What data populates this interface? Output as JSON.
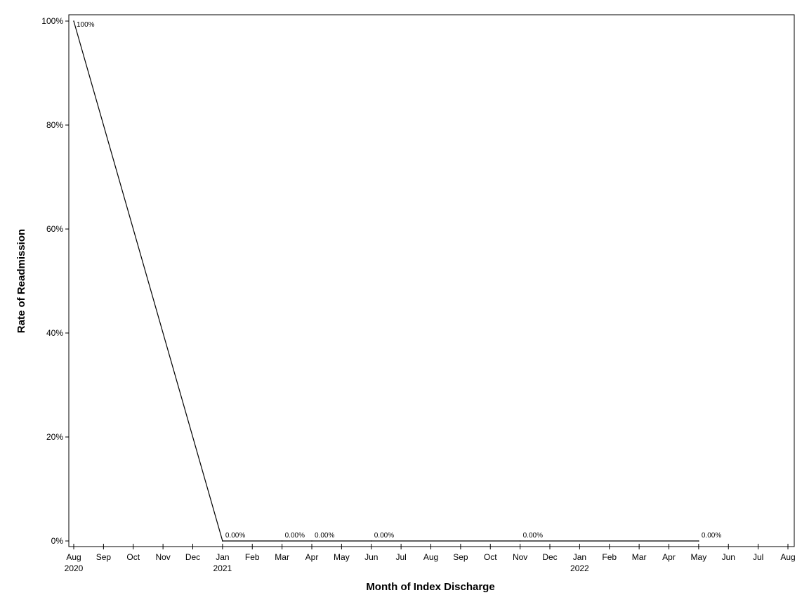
{
  "chart_data": {
    "type": "line",
    "xlabel": "Month of Index Discharge",
    "ylabel": "Rate of Readmission",
    "grid": false,
    "legend": "none",
    "x_range": [
      "2020-08",
      "2022-08"
    ],
    "ylim": [
      0,
      100
    ],
    "y_unit": "%",
    "y_ticks": [
      {
        "value": 0,
        "label": "0%"
      },
      {
        "value": 20,
        "label": "20%"
      },
      {
        "value": 40,
        "label": "40%"
      },
      {
        "value": 60,
        "label": "60%"
      },
      {
        "value": 80,
        "label": "80%"
      },
      {
        "value": 100,
        "label": "100%"
      }
    ],
    "x_ticks": [
      {
        "date": "2020-08",
        "label": "Aug",
        "year": "2020"
      },
      {
        "date": "2020-09",
        "label": "Sep"
      },
      {
        "date": "2020-10",
        "label": "Oct"
      },
      {
        "date": "2020-11",
        "label": "Nov"
      },
      {
        "date": "2020-12",
        "label": "Dec"
      },
      {
        "date": "2021-01",
        "label": "Jan",
        "year": "2021"
      },
      {
        "date": "2021-02",
        "label": "Feb"
      },
      {
        "date": "2021-03",
        "label": "Mar"
      },
      {
        "date": "2021-04",
        "label": "Apr"
      },
      {
        "date": "2021-05",
        "label": "May"
      },
      {
        "date": "2021-06",
        "label": "Jun"
      },
      {
        "date": "2021-07",
        "label": "Jul"
      },
      {
        "date": "2021-08",
        "label": "Aug"
      },
      {
        "date": "2021-09",
        "label": "Sep"
      },
      {
        "date": "2021-10",
        "label": "Oct"
      },
      {
        "date": "2021-11",
        "label": "Nov"
      },
      {
        "date": "2021-12",
        "label": "Dec"
      },
      {
        "date": "2022-01",
        "label": "Jan",
        "year": "2022"
      },
      {
        "date": "2022-02",
        "label": "Feb"
      },
      {
        "date": "2022-03",
        "label": "Mar"
      },
      {
        "date": "2022-04",
        "label": "Apr"
      },
      {
        "date": "2022-05",
        "label": "May"
      },
      {
        "date": "2022-06",
        "label": "Jun"
      },
      {
        "date": "2022-07",
        "label": "Jul"
      },
      {
        "date": "2022-08",
        "label": "Aug"
      }
    ],
    "series": [
      {
        "color": "#000000",
        "points": [
          {
            "x": "2020-08",
            "y": 100,
            "label": "100%"
          },
          {
            "x": "2021-01",
            "y": 0,
            "label": "0.00%"
          },
          {
            "x": "2021-03",
            "y": 0,
            "label": "0.00%"
          },
          {
            "x": "2021-04",
            "y": 0,
            "label": "0.00%"
          },
          {
            "x": "2021-06",
            "y": 0,
            "label": "0.00%"
          },
          {
            "x": "2021-11",
            "y": 0,
            "label": "0.00%"
          },
          {
            "x": "2022-05",
            "y": 0,
            "label": "0.00%"
          }
        ]
      }
    ]
  }
}
